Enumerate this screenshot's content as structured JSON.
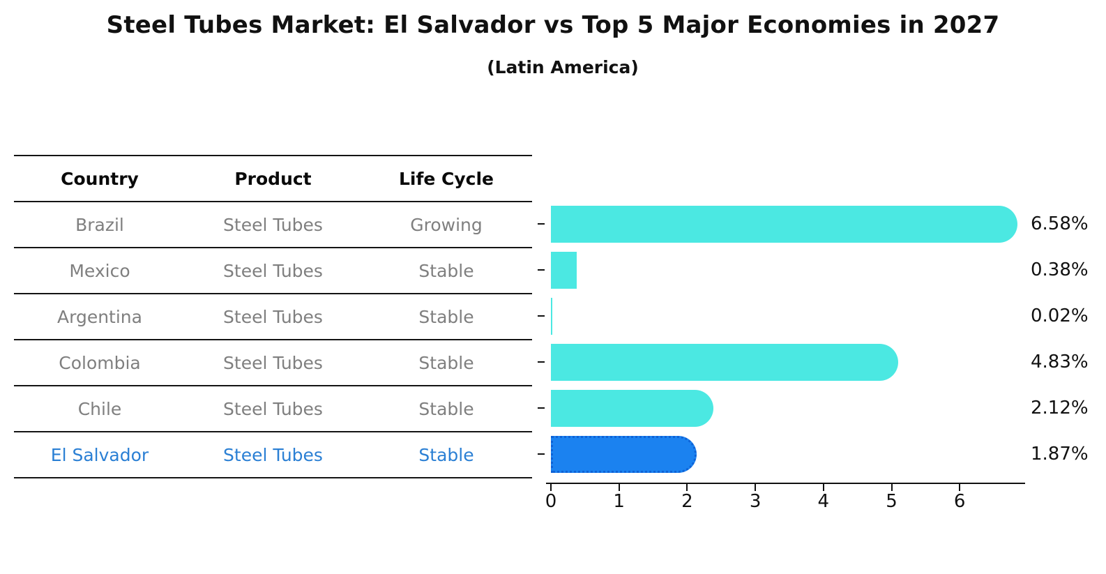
{
  "header": {
    "title": "Steel Tubes Market: El Salvador vs Top 5 Major Economies in 2027",
    "subtitle": "(Latin America)"
  },
  "table": {
    "columns": [
      "Country",
      "Product",
      "Life Cycle"
    ],
    "rows": [
      {
        "country": "Brazil",
        "product": "Steel Tubes",
        "life_cycle": "Growing",
        "highlight": false
      },
      {
        "country": "Mexico",
        "product": "Steel Tubes",
        "life_cycle": "Stable",
        "highlight": false
      },
      {
        "country": "Argentina",
        "product": "Steel Tubes",
        "life_cycle": "Stable",
        "highlight": false
      },
      {
        "country": "Colombia",
        "product": "Steel Tubes",
        "life_cycle": "Stable",
        "highlight": false
      },
      {
        "country": "Chile",
        "product": "Steel Tubes",
        "life_cycle": "Stable",
        "highlight": false
      },
      {
        "country": "El Salvador",
        "product": "Steel Tubes",
        "life_cycle": "Stable",
        "highlight": true
      }
    ]
  },
  "chart_data": {
    "type": "bar",
    "orientation": "horizontal",
    "title": "Steel Tubes Market: El Salvador vs Top 5 Major Economies in 2027 (Latin America)",
    "categories": [
      "Brazil",
      "Mexico",
      "Argentina",
      "Colombia",
      "Chile",
      "El Salvador"
    ],
    "values": [
      6.58,
      0.38,
      0.02,
      4.83,
      2.12,
      1.87
    ],
    "value_labels": [
      "6.58%",
      "0.38%",
      "0.02%",
      "4.83%",
      "2.12%",
      "1.87%"
    ],
    "x_ticks": [
      "0",
      "1",
      "2",
      "3",
      "4",
      "5",
      "6"
    ],
    "xlim": [
      0,
      6.95
    ],
    "grid": false,
    "legend": false,
    "highlight_category": "El Salvador",
    "colors": {
      "bar": "#4be8e2",
      "highlight_bar": "#1b82f0",
      "highlight_border": "#0e62d6",
      "muted_text": "#7f7f7f",
      "highlight_text": "#2a7fd4",
      "axis": "#111111"
    }
  }
}
